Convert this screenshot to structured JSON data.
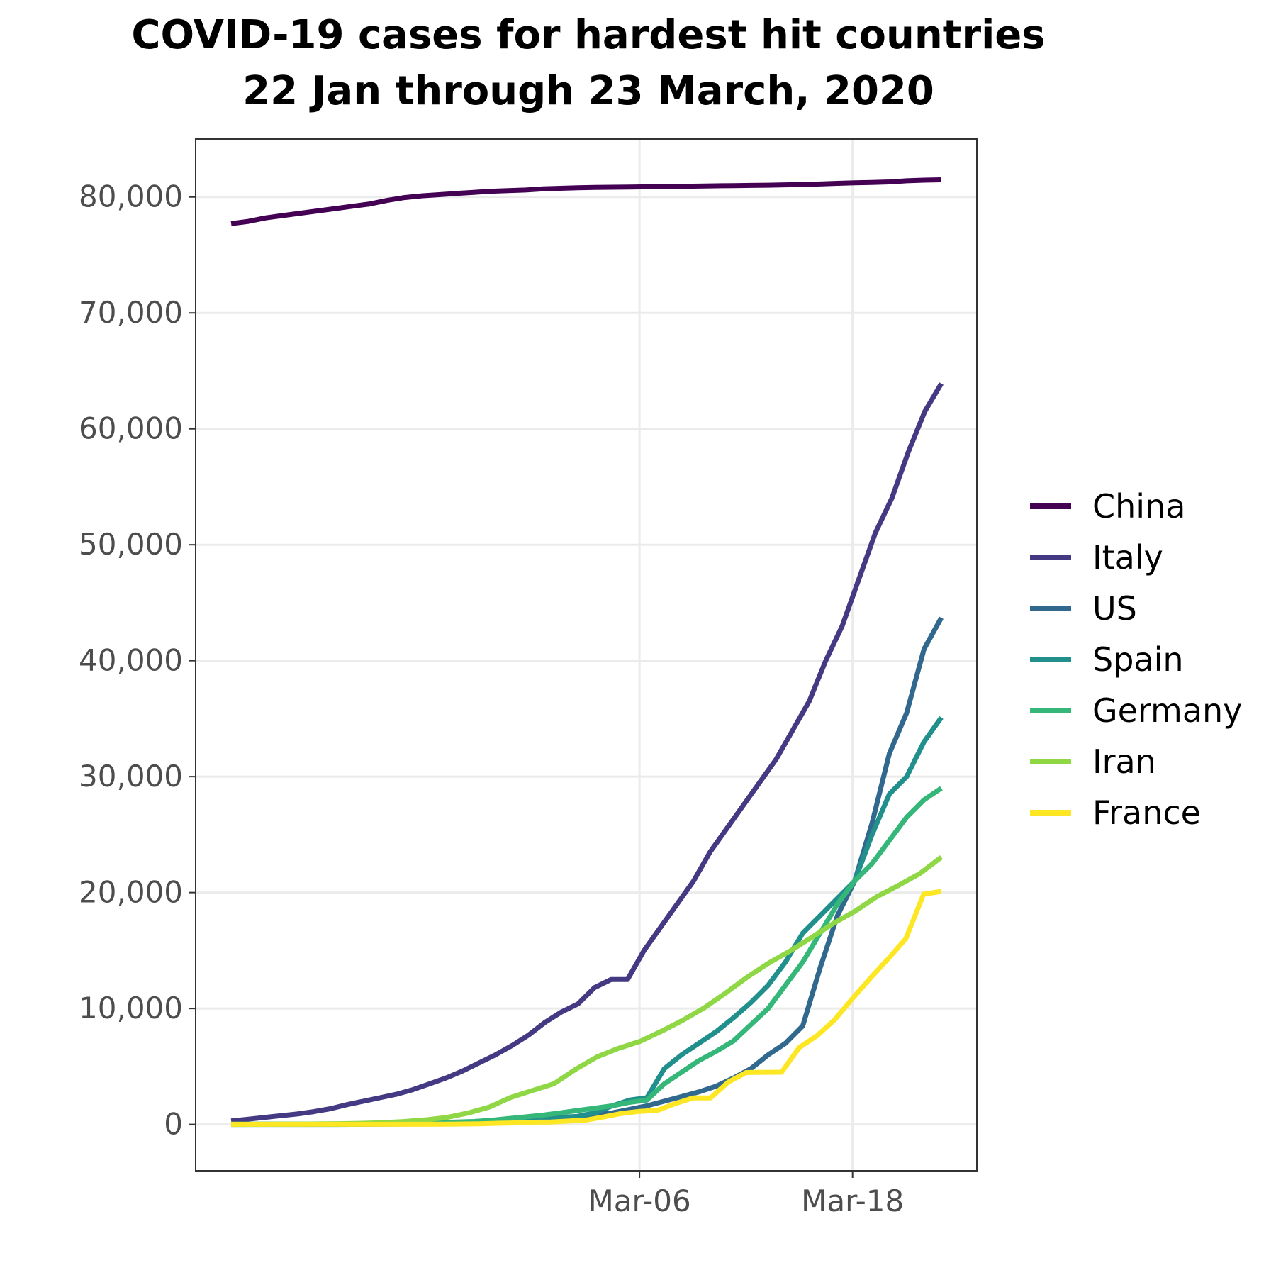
{
  "chart_data": {
    "type": "line",
    "title_lines": [
      "COVID-19 cases for hardest hit countries",
      "22 Jan through 23 March, 2020"
    ],
    "xlabel": "",
    "ylabel": "",
    "x_start": "2020-02-12",
    "x_end": "2020-03-23",
    "xlim": [
      "2020-02-10",
      "2020-03-25"
    ],
    "ylim": [
      -4000,
      85000
    ],
    "y_ticks": [
      0,
      10000,
      20000,
      30000,
      40000,
      50000,
      60000,
      70000,
      80000
    ],
    "y_tick_labels": [
      "0",
      "10,000",
      "20,000",
      "30,000",
      "40,000",
      "50,000",
      "60,000",
      "70,000",
      "80,000"
    ],
    "x_ticks": [
      "2020-03-06",
      "2020-03-18"
    ],
    "x_tick_labels": [
      "Mar-06",
      "Mar-18"
    ],
    "grid": true,
    "legend_position": "right",
    "series": [
      {
        "name": "China",
        "color": "#440154",
        "values": [
          77700,
          77900,
          78200,
          78400,
          78600,
          78800,
          79000,
          79200,
          79400,
          79700,
          79950,
          80100,
          80200,
          80300,
          80400,
          80500,
          80550,
          80600,
          80700,
          80750,
          80800,
          80820,
          80840,
          80860,
          80880,
          80900,
          80920,
          80940,
          80960,
          80980,
          81000,
          81020,
          81050,
          81080,
          81120,
          81180,
          81220,
          81250,
          81300,
          81400,
          81450,
          81480
        ]
      },
      {
        "name": "Italy",
        "color": "#443A83",
        "values": [
          300,
          450,
          600,
          750,
          900,
          1100,
          1350,
          1700,
          2000,
          2300,
          2600,
          3000,
          3500,
          4000,
          4600,
          5300,
          6000,
          6800,
          7700,
          8800,
          9700,
          10400,
          11800,
          12500,
          12500,
          15000,
          17000,
          19000,
          21000,
          23500,
          25500,
          27500,
          29500,
          31500,
          34000,
          36500,
          40000,
          43000,
          47000,
          51000,
          54000,
          58000,
          61500,
          63900
        ]
      },
      {
        "name": "US",
        "color": "#31688E",
        "values": [
          15,
          15,
          20,
          25,
          30,
          35,
          40,
          45,
          50,
          55,
          60,
          70,
          80,
          100,
          130,
          170,
          250,
          330,
          420,
          500,
          600,
          800,
          1000,
          1300,
          1600,
          2000,
          2400,
          2800,
          3300,
          4000,
          4800,
          6000,
          7000,
          8500,
          13500,
          18000,
          21000,
          26000,
          32000,
          35500,
          41000,
          43700
        ]
      },
      {
        "name": "Spain",
        "color": "#21908C",
        "values": [
          2,
          2,
          2,
          2,
          2,
          2,
          2,
          5,
          10,
          20,
          30,
          45,
          70,
          100,
          150,
          200,
          300,
          400,
          500,
          600,
          700,
          1000,
          1600,
          2100,
          2300,
          4800,
          6000,
          7000,
          8000,
          9200,
          10500,
          12000,
          14000,
          16500,
          18000,
          19500,
          21000,
          25000,
          28500,
          30000,
          33000,
          35100
        ]
      },
      {
        "name": "Germany",
        "color": "#35B779",
        "values": [
          16,
          16,
          16,
          16,
          16,
          16,
          16,
          20,
          30,
          50,
          80,
          120,
          160,
          200,
          250,
          350,
          500,
          650,
          800,
          1000,
          1200,
          1400,
          1600,
          1900,
          2100,
          3500,
          4500,
          5500,
          6300,
          7200,
          8600,
          10000,
          12000,
          14000,
          16500,
          19000,
          21000,
          22500,
          24500,
          26500,
          28000,
          29000
        ]
      },
      {
        "name": "Iran",
        "color": "#8FD744",
        "values": [
          2,
          5,
          18,
          28,
          43,
          61,
          95,
          139,
          245,
          388,
          593,
          978,
          1501,
          2336,
          2922,
          3513,
          4747,
          5823,
          6566,
          7161,
          8042,
          9000,
          10075,
          11364,
          12729,
          13938,
          14991,
          16169,
          17361,
          18407,
          19644,
          20610,
          21638,
          23049
        ]
      },
      {
        "name": "France",
        "color": "#FDE725",
        "values": [
          11,
          11,
          11,
          11,
          11,
          11,
          12,
          12,
          12,
          12,
          12,
          14,
          18,
          38,
          57,
          100,
          130,
          191,
          204,
          285,
          377,
          653,
          949,
          1126,
          1209,
          1784,
          2281,
          2284,
          3661,
          4469,
          4499,
          4500,
          6633,
          7652,
          9043,
          10871,
          12612,
          14282,
          16018,
          19856,
          20100
        ]
      }
    ]
  }
}
